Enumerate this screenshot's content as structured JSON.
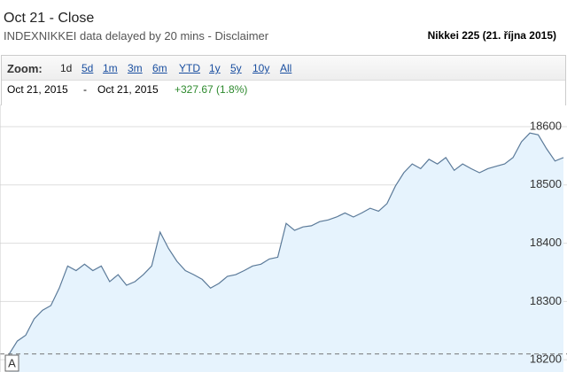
{
  "header": {
    "subtitle": "Oct 21 - Close",
    "note": "INDEXNIKKEI data delayed by 20 mins - Disclaimer",
    "caption": "Nikkei 225 (21. října 2015)"
  },
  "zoom": {
    "label": "Zoom:",
    "options": [
      "1d",
      "5d",
      "1m",
      "3m",
      "6m",
      "YTD",
      "1y",
      "5y",
      "10y",
      "All"
    ]
  },
  "range": {
    "start": "Oct 21, 2015",
    "separator": "-",
    "end": "Oct 21, 2015",
    "change": "+327.67 (1.8%)"
  },
  "chart_data": {
    "type": "area",
    "color": "#5b7a99",
    "fill": "#e6f3fd",
    "values": [
      18209,
      18232,
      18242,
      18270,
      18285,
      18293,
      18323,
      18361,
      18353,
      18364,
      18353,
      18361,
      18334,
      18346,
      18328,
      18334,
      18346,
      18361,
      18419,
      18391,
      18369,
      18353,
      18346,
      18338,
      18323,
      18331,
      18343,
      18346,
      18353,
      18361,
      18364,
      18373,
      18376,
      18434,
      18422,
      18428,
      18430,
      18437,
      18440,
      18445,
      18452,
      18445,
      18452,
      18460,
      18455,
      18468,
      18498,
      18521,
      18536,
      18528,
      18544,
      18536,
      18547,
      18525,
      18536,
      18528,
      18521,
      18528,
      18532,
      18536,
      18547,
      18574,
      18589,
      18586,
      18562,
      18541,
      18547
    ],
    "ylim": [
      18179,
      18638
    ],
    "yticks": [
      18200,
      18300,
      18400,
      18500,
      18600
    ],
    "grid": true,
    "baseline": 18210,
    "annotation": "A"
  }
}
